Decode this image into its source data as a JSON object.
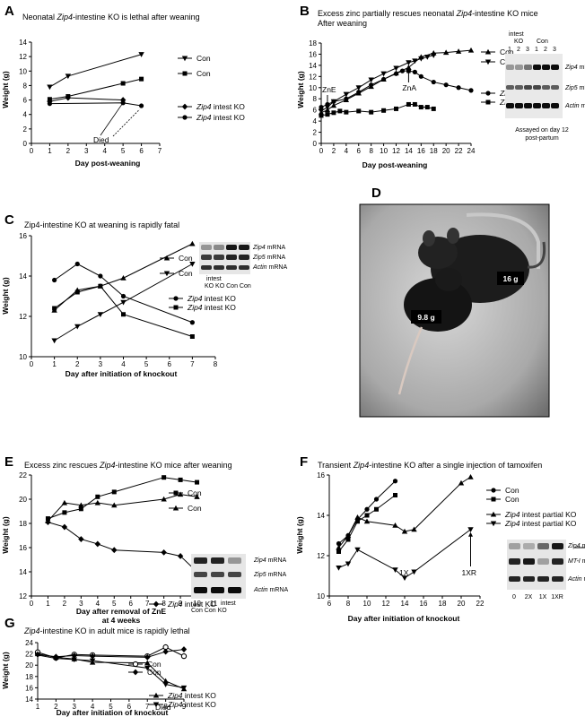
{
  "panels": [
    {
      "id": "A",
      "letter": "A",
      "title_parts": [
        "Neonatal ",
        "Zip4",
        "-intestine KO is lethal after weaning"
      ],
      "xlabel": "Day post-weaning",
      "ylabel": "Weight (g)",
      "annotations": [
        {
          "text": "Died"
        }
      ],
      "chart_data": {
        "type": "line",
        "xlim": [
          0,
          7
        ],
        "ylim": [
          0,
          14
        ],
        "xticks": [
          0,
          1,
          2,
          3,
          4,
          5,
          6,
          7
        ],
        "yticks": [
          0,
          2,
          4,
          6,
          8,
          10,
          12,
          14
        ],
        "series": [
          {
            "name": "Con",
            "marker": "tri-down",
            "x": [
              1,
              2,
              6
            ],
            "y": [
              7.8,
              9.3,
              12.3
            ]
          },
          {
            "name": "Con",
            "marker": "square",
            "x": [
              1,
              2,
              5,
              6
            ],
            "y": [
              6.1,
              6.5,
              8.3,
              8.9
            ]
          },
          {
            "name_parts": [
              "Zip4",
              " intest KO"
            ],
            "marker": "diamond",
            "x": [
              1,
              2,
              5
            ],
            "y": [
              5.8,
              6.3,
              6.0
            ]
          },
          {
            "name_parts": [
              "Zip4",
              " intest KO"
            ],
            "marker": "circle",
            "x": [
              1,
              5,
              6
            ],
            "y": [
              5.5,
              5.6,
              5.2
            ]
          }
        ]
      }
    },
    {
      "id": "B",
      "letter": "B",
      "title_parts": [
        "Excess zinc partially rescues neonatal ",
        "Zip4",
        "-intestine KO mice"
      ],
      "title_line2": "After weaning",
      "xlabel": "Day post-weaning",
      "ylabel": "Weight (g)",
      "annotations": [
        {
          "text": "ZnE"
        },
        {
          "text": "ZnA"
        }
      ],
      "blot": {
        "header": [
          "intest",
          "KO",
          "Con"
        ],
        "lanes": [
          "1",
          "2",
          "3",
          "1",
          "2",
          "3"
        ],
        "rows": [
          [
            "Zip4",
            " mRNA"
          ],
          [
            "Zip5",
            " mRNA"
          ],
          [
            "Actin",
            " mRNA"
          ]
        ],
        "caption": [
          "Assayed on day 12",
          "post-partum"
        ]
      },
      "chart_data": {
        "type": "line",
        "xlim": [
          0,
          24
        ],
        "ylim": [
          0,
          18
        ],
        "xticks": [
          0,
          2,
          4,
          6,
          8,
          10,
          12,
          14,
          16,
          18,
          20,
          22,
          24
        ],
        "yticks": [
          0,
          2,
          4,
          6,
          8,
          10,
          12,
          14,
          16,
          18
        ],
        "series": [
          {
            "name": "Con",
            "marker": "tri-up",
            "x": [
              0,
              1,
              2,
              4,
              6,
              8,
              10,
              12,
              14,
              16,
              18,
              20,
              22,
              24
            ],
            "y": [
              5.5,
              6.0,
              6.8,
              7.8,
              9.0,
              10.2,
              11.5,
              12.6,
              13.6,
              15.5,
              16.2,
              16.3,
              16.5,
              16.7
            ]
          },
          {
            "name": "Con",
            "marker": "tri-down",
            "x": [
              0,
              1,
              2,
              4,
              6,
              8,
              10,
              12,
              14,
              15,
              16,
              17,
              18
            ],
            "y": [
              5.8,
              6.5,
              7.5,
              8.8,
              10.0,
              11.4,
              12.5,
              13.5,
              14.5,
              14.8,
              15.2,
              15.5,
              15.8
            ]
          },
          {
            "name_parts": [
              "Zip4",
              " intest KO"
            ],
            "marker": "circle",
            "x": [
              0,
              1,
              2,
              4,
              6,
              8,
              10,
              12,
              13,
              14,
              15,
              16,
              18,
              20,
              22,
              24
            ],
            "y": [
              6.5,
              7.0,
              7.5,
              8.0,
              9.2,
              10.5,
              11.5,
              12.5,
              13.0,
              13.0,
              12.8,
              12.0,
              11.0,
              10.5,
              10.0,
              9.5
            ]
          },
          {
            "name_parts": [
              "Zip4",
              " intest KO"
            ],
            "marker": "square",
            "x": [
              0,
              1,
              2,
              3,
              4,
              6,
              8,
              10,
              12,
              14,
              15,
              16,
              17,
              18
            ],
            "y": [
              5.0,
              5.2,
              5.5,
              5.8,
              5.6,
              5.8,
              5.6,
              5.9,
              6.2,
              7.0,
              7.0,
              6.5,
              6.5,
              6.2
            ]
          }
        ]
      }
    },
    {
      "id": "C",
      "letter": "C",
      "title_parts": [
        "Zip4-intestine KO at weaning is rapidly fatal"
      ],
      "xlabel": "Day after initiation of knockout",
      "ylabel": "Weight (g)",
      "blot": {
        "rows": [
          [
            "Zip4",
            " mRNA"
          ],
          [
            "Zip5",
            " mRNA"
          ],
          [
            "Actin",
            " mRNA"
          ]
        ],
        "lane_labels": [
          "intest",
          "KO KO Con Con"
        ]
      },
      "chart_data": {
        "type": "line",
        "xlim": [
          0,
          8
        ],
        "ylim": [
          10,
          16
        ],
        "xticks": [
          0,
          1,
          2,
          3,
          4,
          5,
          6,
          7,
          8
        ],
        "yticks": [
          10,
          12,
          14,
          16
        ],
        "series": [
          {
            "name": "Con",
            "marker": "tri-up",
            "x": [
              1,
              2,
              3,
              4,
              7
            ],
            "y": [
              12.3,
              13.3,
              13.5,
              13.9,
              15.6
            ]
          },
          {
            "name": "Con",
            "marker": "tri-down",
            "x": [
              1,
              2,
              3,
              4,
              7
            ],
            "y": [
              10.8,
              11.5,
              12.1,
              12.7,
              14.6
            ]
          },
          {
            "name_parts": [
              "Zip4",
              " intest KO"
            ],
            "marker": "circle",
            "x": [
              1,
              2,
              3,
              4,
              7
            ],
            "y": [
              13.8,
              14.6,
              14.0,
              13.0,
              11.7
            ]
          },
          {
            "name_parts": [
              "Zip4",
              " intest KO"
            ],
            "marker": "square",
            "x": [
              1,
              2,
              3,
              4,
              7
            ],
            "y": [
              12.4,
              13.2,
              13.5,
              12.1,
              11.0
            ]
          }
        ]
      }
    },
    {
      "id": "D",
      "letter": "D",
      "photo_labels": [
        "16 g",
        "9.8 g"
      ]
    },
    {
      "id": "E",
      "letter": "E",
      "title_parts": [
        "Excess zinc rescues ",
        "Zip4",
        "-intestine KO mice after weaning"
      ],
      "xlabel": "Day after removal of ZnE",
      "xlabel2": "at 4 weeks",
      "ylabel": "Weight (g)",
      "blot": {
        "rows": [
          [
            "Zip4",
            " mRNA"
          ],
          [
            "Zip5",
            " mRNA"
          ],
          [
            "Actin",
            " mRNA"
          ]
        ],
        "lane_labels": [
          "intest",
          "Con Con   KO"
        ]
      },
      "chart_data": {
        "type": "line",
        "xlim": [
          0,
          11
        ],
        "ylim": [
          12,
          22
        ],
        "xticks": [
          0,
          1,
          2,
          3,
          4,
          5,
          6,
          7,
          8,
          9,
          10,
          11
        ],
        "yticks": [
          12,
          14,
          16,
          18,
          20,
          22
        ],
        "series": [
          {
            "name": "Con",
            "marker": "square",
            "x": [
              1,
              2,
              3,
              4,
              5,
              8,
              9,
              10
            ],
            "y": [
              18.4,
              18.9,
              19.2,
              20.2,
              20.6,
              21.8,
              21.6,
              21.4
            ]
          },
          {
            "name": "Con",
            "marker": "tri-up",
            "x": [
              1,
              2,
              3,
              4,
              5,
              8,
              9,
              10
            ],
            "y": [
              18.2,
              19.7,
              19.5,
              19.7,
              19.5,
              20.0,
              20.4,
              20.2
            ]
          },
          {
            "name_parts": [
              "Zip4",
              " intest KO"
            ],
            "marker": "diamond",
            "x": [
              1,
              2,
              3,
              4,
              5,
              8,
              9,
              10
            ],
            "y": [
              18.1,
              17.7,
              16.7,
              16.3,
              15.8,
              15.6,
              15.3,
              14.0
            ]
          }
        ]
      }
    },
    {
      "id": "F",
      "letter": "F",
      "title_parts": [
        "Transient ",
        "Zip4",
        "-intestine KO after a single injection of tamoxifen"
      ],
      "xlabel": "Day after initiation of knockout",
      "ylabel": "Weight (g)",
      "annotations": [
        {
          "text": "1X"
        },
        {
          "text": "1XR"
        }
      ],
      "blot": {
        "rows": [
          [
            "Zip4",
            " mRNA"
          ],
          [
            "MT-I",
            " mRNA"
          ],
          [
            "Actin",
            " mRNA"
          ]
        ],
        "lane_labels": [
          "0",
          "2X",
          "1X",
          "1XR"
        ]
      },
      "chart_data": {
        "type": "line",
        "xlim": [
          6,
          22
        ],
        "ylim": [
          10,
          16
        ],
        "xticks": [
          6,
          8,
          10,
          12,
          14,
          16,
          18,
          20,
          22
        ],
        "yticks": [
          10,
          12,
          14,
          16
        ],
        "series": [
          {
            "name": "Con",
            "marker": "circle",
            "x": [
              7,
              8,
              9,
              10,
              11,
              13
            ],
            "y": [
              12.6,
              13.0,
              13.8,
              14.3,
              14.8,
              15.7
            ]
          },
          {
            "name": "Con",
            "marker": "square",
            "x": [
              7,
              8,
              9,
              10,
              11,
              13
            ],
            "y": [
              12.2,
              12.8,
              13.7,
              14.0,
              14.3,
              15.0
            ]
          },
          {
            "name_parts": [
              "Zip4",
              " intest partial KO"
            ],
            "marker": "tri-up",
            "x": [
              7,
              8,
              9,
              10,
              13,
              14,
              15,
              20,
              21
            ],
            "y": [
              12.4,
              13.0,
              13.9,
              13.7,
              13.5,
              13.2,
              13.3,
              15.6,
              15.9
            ]
          },
          {
            "name_parts": [
              "Zip4",
              " intest partial KO"
            ],
            "marker": "tri-down",
            "x": [
              7,
              8,
              9,
              13,
              14,
              15,
              21
            ],
            "y": [
              11.4,
              11.6,
              12.3,
              11.3,
              10.9,
              11.2,
              13.3
            ]
          }
        ]
      }
    },
    {
      "id": "G",
      "letter": "G",
      "title_parts": [
        "Zip4",
        "-intestine KO in adult mice is rapidly lethal"
      ],
      "xlabel": "Day after initiation of knockout",
      "ylabel": "Weight (g)",
      "annotations": [
        {
          "text": "Died"
        }
      ],
      "chart_data": {
        "type": "line",
        "xlim": [
          1,
          9
        ],
        "ylim": [
          14,
          24
        ],
        "xticks": [
          1,
          2,
          3,
          4,
          5,
          6,
          7,
          8,
          9
        ],
        "yticks": [
          14,
          16,
          18,
          20,
          22,
          24
        ],
        "series": [
          {
            "name": "Con",
            "marker": "circle-open",
            "x": [
              1,
              2,
              3,
              4,
              7,
              8,
              9
            ],
            "y": [
              22.3,
              21.3,
              21.9,
              21.8,
              21.6,
              23.2,
              21.6
            ]
          },
          {
            "name": "Con",
            "marker": "diamond",
            "x": [
              1,
              2,
              3,
              4,
              7,
              8,
              9
            ],
            "y": [
              21.9,
              21.5,
              21.7,
              21.6,
              21.4,
              22.4,
              22.8
            ]
          },
          {
            "name_parts": [
              "Zip4",
              " intest KO"
            ],
            "marker": "tri-up",
            "x": [
              1,
              2,
              3,
              4,
              7,
              8,
              9
            ],
            "y": [
              22.0,
              21.4,
              21.1,
              20.5,
              20.4,
              17.2,
              15.8
            ]
          },
          {
            "name_parts": [
              "Zip4",
              " intest KO"
            ],
            "marker": "tri-down",
            "x": [
              1,
              2,
              3,
              4,
              7,
              8,
              9
            ],
            "y": [
              21.8,
              21.2,
              21.0,
              20.8,
              19.5,
              16.6,
              16.0
            ]
          }
        ]
      }
    }
  ]
}
